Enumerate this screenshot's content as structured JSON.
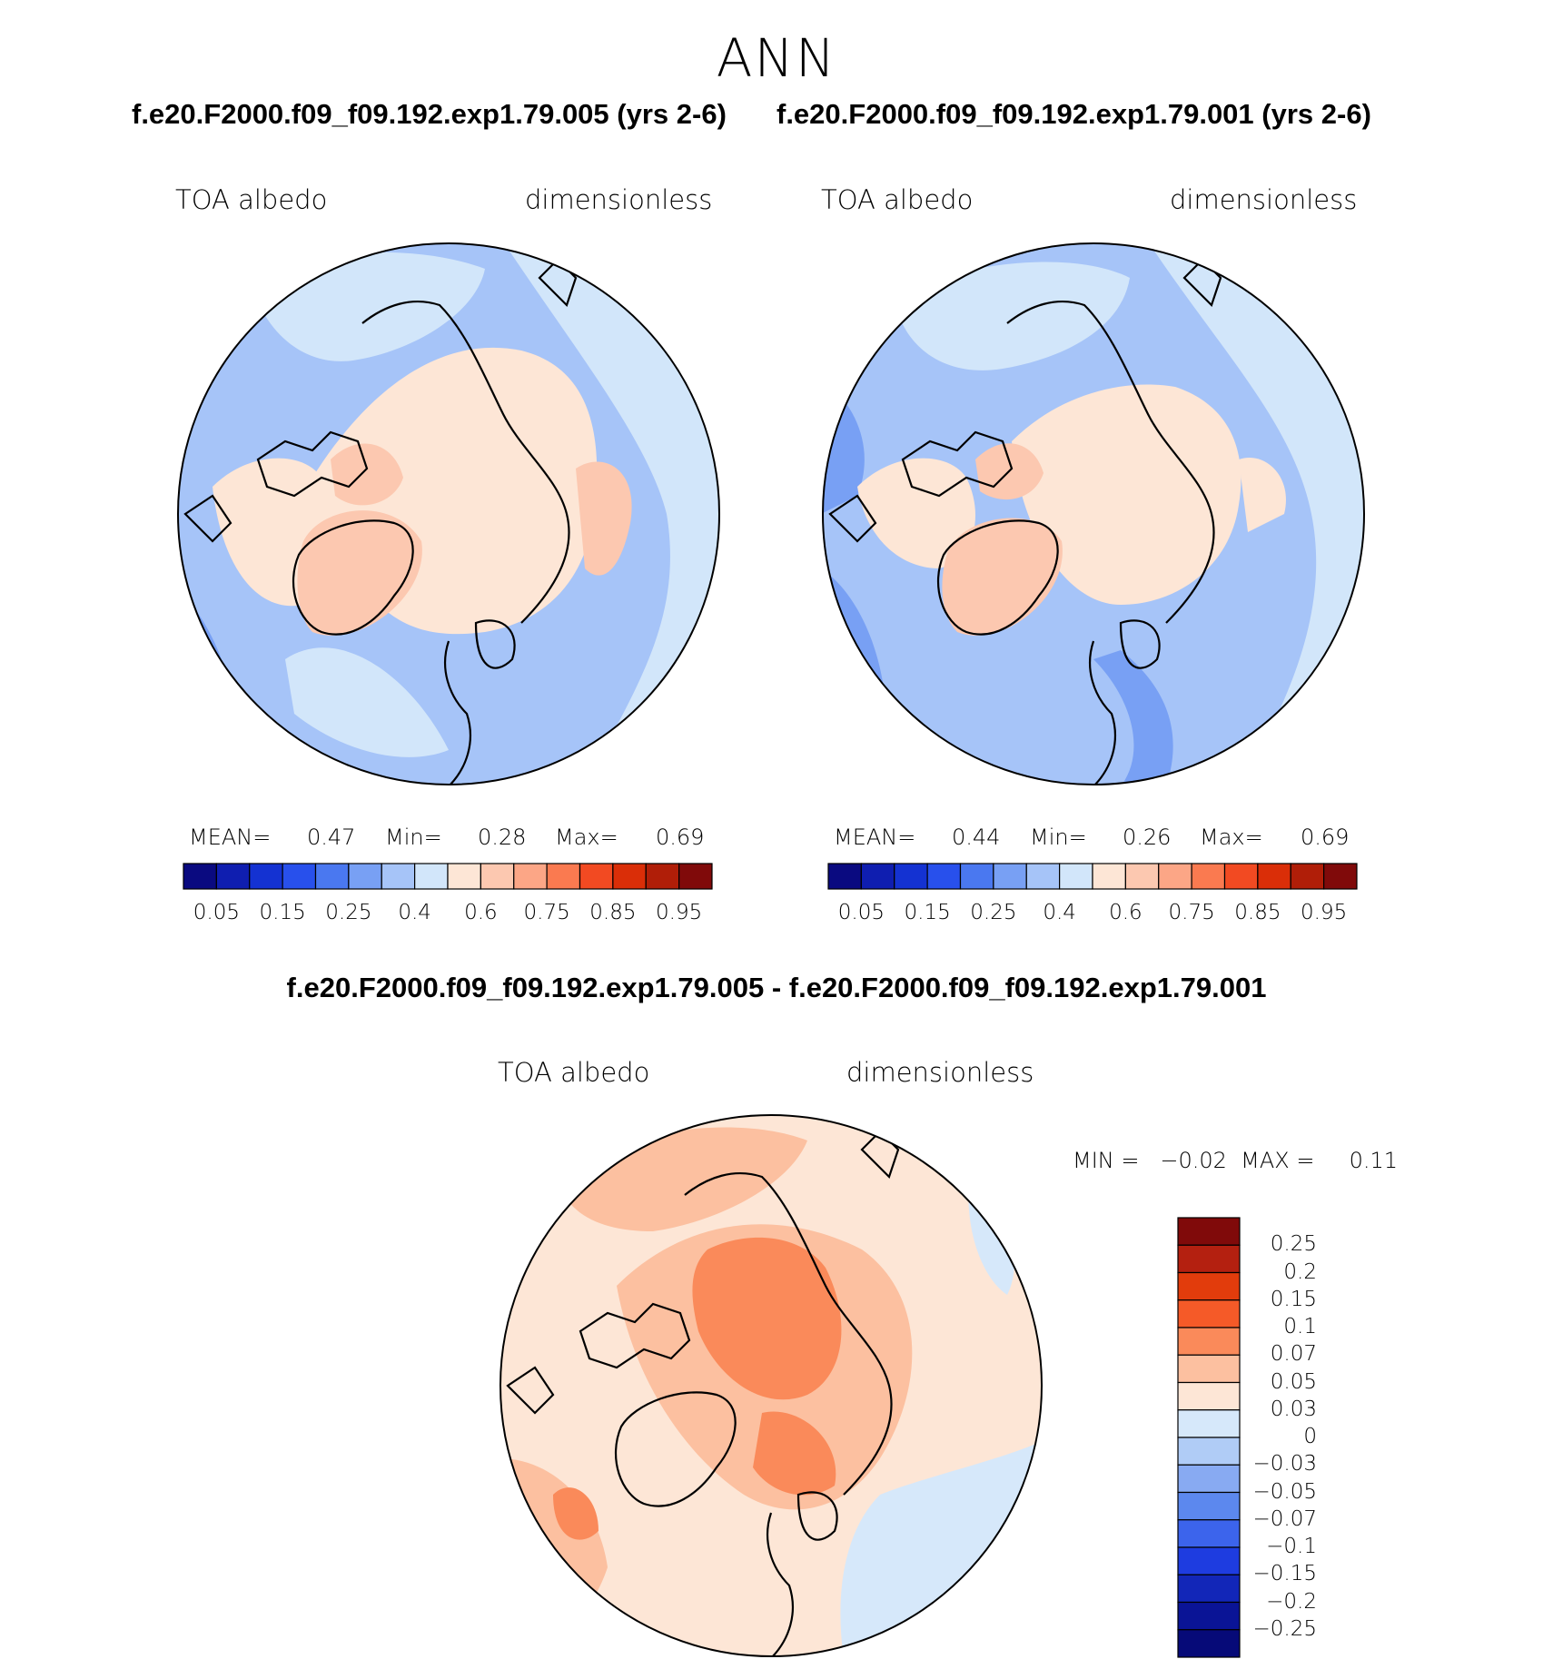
{
  "page_title": "ANN",
  "panels": [
    {
      "case_title": "f.e20.F2000.f09_f09.192.exp1.79.005 (yrs 2-6)",
      "left_label": "TOA albedo",
      "right_label": "dimensionless",
      "stats": {
        "mean_label": "MEAN=",
        "mean": "0.47",
        "min_label": "Min=",
        "min": "0.28",
        "max_label": "Max=",
        "max": "0.69"
      }
    },
    {
      "case_title": "f.e20.F2000.f09_f09.192.exp1.79.001 (yrs 2-6)",
      "left_label": "TOA albedo",
      "right_label": "dimensionless",
      "stats": {
        "mean_label": "MEAN=",
        "mean": "0.44",
        "min_label": "Min=",
        "min": "0.26",
        "max_label": "Max=",
        "max": "0.69"
      }
    }
  ],
  "diff_panel": {
    "title": "f.e20.F2000.f09_f09.192.exp1.79.005 - f.e20.F2000.f09_f09.192.exp1.79.001",
    "left_label": "TOA albedo",
    "right_label": "dimensionless",
    "minmax": "MIN =   −0.02  MAX =     0.11"
  },
  "colorbar_abs": {
    "colors": [
      "#0a0a80",
      "#0f1eb0",
      "#1432d2",
      "#2850ec",
      "#4a78f0",
      "#78a0f4",
      "#a6c4f8",
      "#d2e6fa",
      "#fde6d6",
      "#fcc8b0",
      "#fca686",
      "#fa7a50",
      "#f24a22",
      "#da2e08",
      "#b01e08",
      "#800a0a"
    ],
    "tick_labels": [
      "0.05",
      "0.15",
      "0.25",
      "0.4",
      "0.6",
      "0.75",
      "0.85",
      "0.95"
    ]
  },
  "colorbar_diff": {
    "colors_top_to_bottom": [
      "#800a0a",
      "#b42010",
      "#e23c0c",
      "#f55a28",
      "#fa8a5a",
      "#fcc0a0",
      "#fde6d6",
      "#d6e8fa",
      "#b0ccf6",
      "#88aaf2",
      "#5c88ee",
      "#3c64ec",
      "#1e3ce0",
      "#1226b8",
      "#0a1496",
      "#060a78"
    ],
    "tick_labels": [
      "0.25",
      "0.2",
      "0.15",
      "0.1",
      "0.07",
      "0.05",
      "0.03",
      "0",
      "−0.03",
      "−0.05",
      "−0.07",
      "−0.1",
      "−0.15",
      "−0.2",
      "−0.25"
    ]
  },
  "chart_data": [
    {
      "type": "heatmap",
      "projection": "polar stereographic (north)",
      "title": "f.e20.F2000.f09_f09.192.exp1.79.005 (yrs 2-6)",
      "variable": "TOA albedo",
      "units": "dimensionless",
      "mean": 0.47,
      "min": 0.28,
      "max": 0.69,
      "contour_levels": [
        0.05,
        0.1,
        0.15,
        0.2,
        0.25,
        0.3,
        0.35,
        0.4,
        0.5,
        0.6,
        0.65,
        0.75,
        0.8,
        0.85,
        0.9,
        0.95
      ]
    },
    {
      "type": "heatmap",
      "projection": "polar stereographic (north)",
      "title": "f.e20.F2000.f09_f09.192.exp1.79.001 (yrs 2-6)",
      "variable": "TOA albedo",
      "units": "dimensionless",
      "mean": 0.44,
      "min": 0.26,
      "max": 0.69,
      "contour_levels": [
        0.05,
        0.1,
        0.15,
        0.2,
        0.25,
        0.3,
        0.35,
        0.4,
        0.5,
        0.6,
        0.65,
        0.75,
        0.8,
        0.85,
        0.9,
        0.95
      ]
    },
    {
      "type": "heatmap",
      "projection": "polar stereographic (north)",
      "title": "f.e20.F2000.f09_f09.192.exp1.79.005 - f.e20.F2000.f09_f09.192.exp1.79.001",
      "variable": "TOA albedo",
      "units": "dimensionless",
      "min": -0.02,
      "max": 0.11,
      "contour_levels": [
        -0.25,
        -0.2,
        -0.15,
        -0.1,
        -0.07,
        -0.05,
        -0.03,
        0,
        0.03,
        0.05,
        0.07,
        0.1,
        0.15,
        0.2,
        0.25
      ]
    }
  ]
}
